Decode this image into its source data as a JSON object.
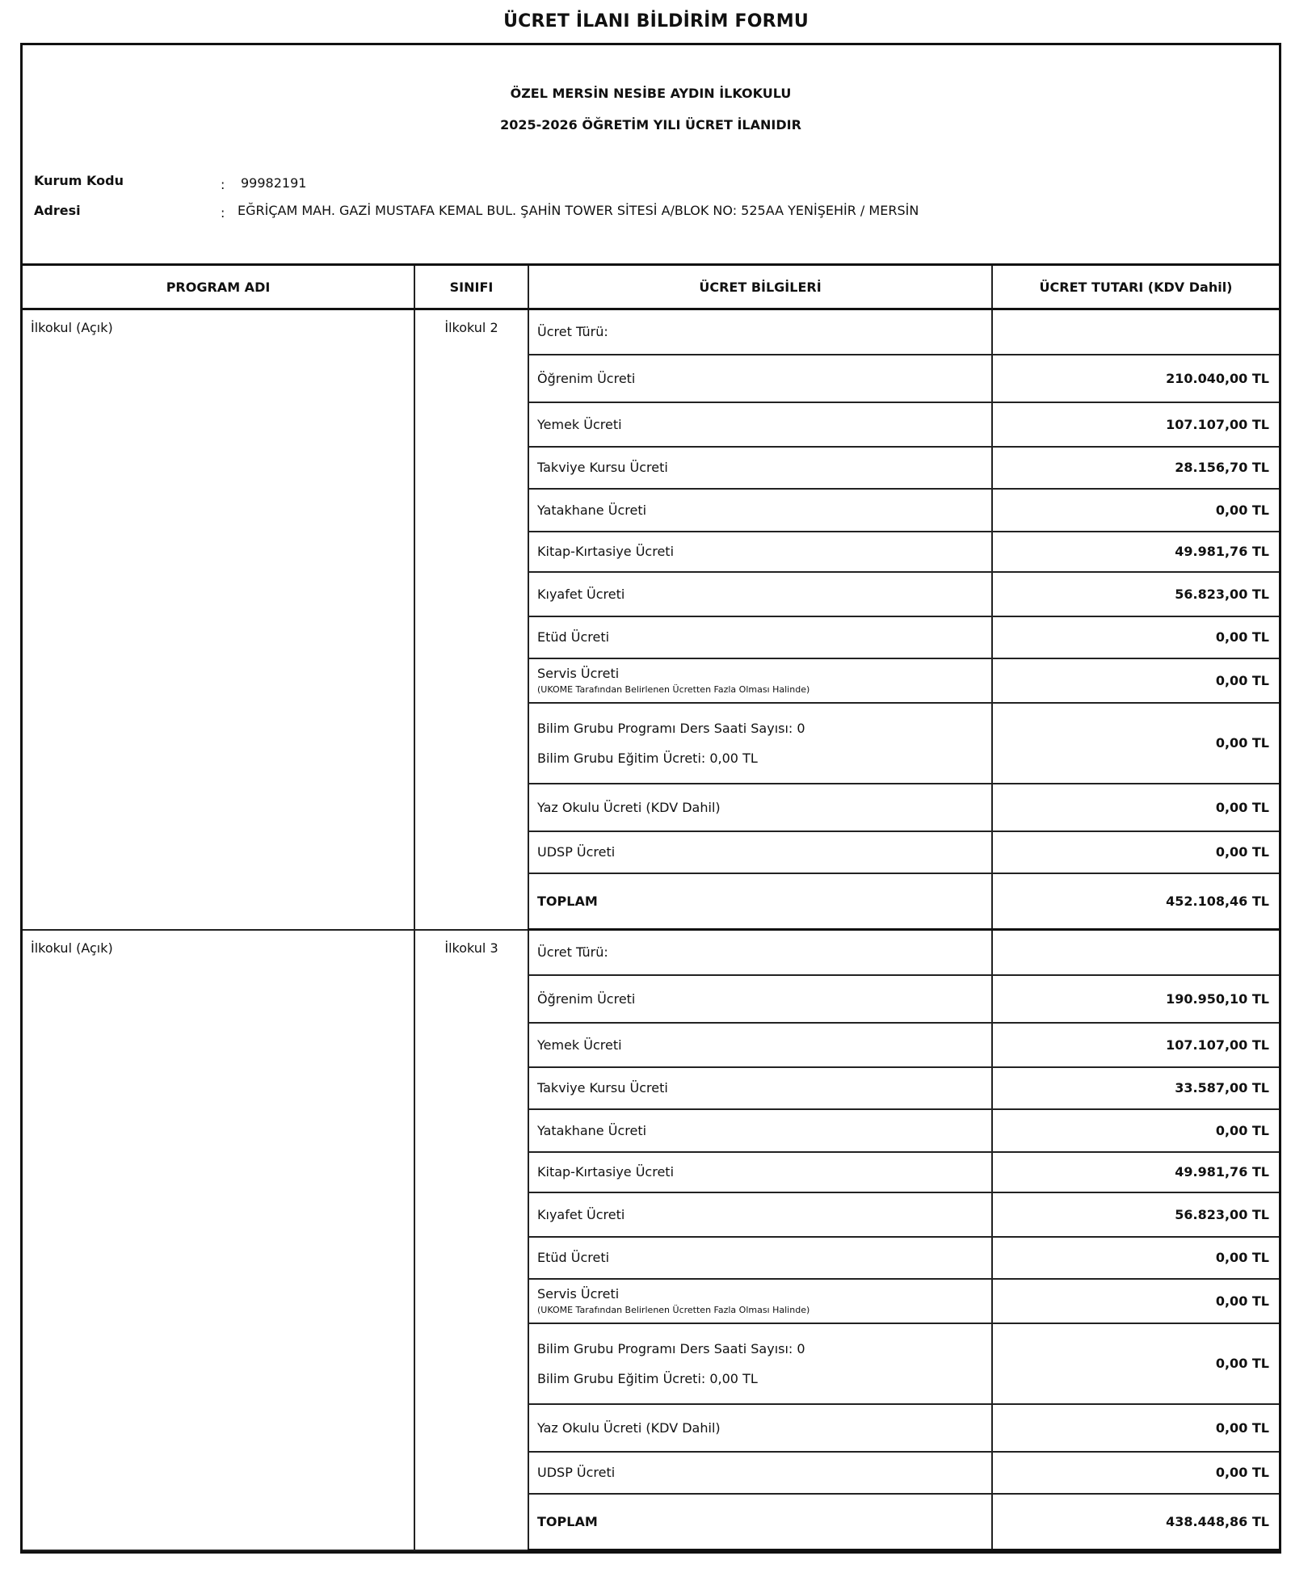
{
  "form_title": "ÜCRET İLANI BİLDİRİM FORMU",
  "school_name": "ÖZEL MERSİN NESİBE AYDIN İLKOKULU",
  "year_title": "2025-2026 ÖĞRETİM YILI ÜCRET İLANIDIR",
  "institution": {
    "code_label": "Kurum Kodu",
    "code_value": "99982191",
    "address_label": "Adresi",
    "address_value": "EĞRİÇAM MAH. GAZİ MUSTAFA KEMAL BUL. ŞAHİN TOWER SİTESİ A/BLOK  NO: 525AA YENİŞEHİR / MERSİN",
    "separator": ":"
  },
  "columns": [
    "PROGRAM ADI",
    "SINIFI",
    "ÜCRET BİLGİLERİ",
    "ÜCRET TUTARI (KDV Dahil)"
  ],
  "sections": [
    {
      "program": "İlkokul (Açık)",
      "class": "İlkokul 2",
      "rows": [
        {
          "label": "Ücret Türü:",
          "amount": ""
        },
        {
          "label": "Öğrenim Ücreti",
          "amount": "210.040,00 TL"
        },
        {
          "label": "Yemek Ücreti",
          "amount": "107.107,00 TL"
        },
        {
          "label": "Takviye Kursu Ücreti",
          "amount": "28.156,70 TL"
        },
        {
          "label": "Yatakhane Ücreti",
          "amount": "0,00 TL"
        },
        {
          "label": "Kitap-Kırtasiye Ücreti",
          "amount": "49.981,76 TL"
        },
        {
          "label": "Kıyafet Ücreti",
          "amount": "56.823,00 TL"
        },
        {
          "label": "Etüd Ücreti",
          "amount": "0,00 TL"
        },
        {
          "label": "Servis Ücreti",
          "note": "(UKOME Tarafından Belirlenen Ücretten Fazla Olması Halinde)",
          "amount": "0,00 TL"
        },
        {
          "label": "Bilim Grubu Programı Ders Saati Sayısı: 0",
          "label2": "Bilim Grubu Eğitim Ücreti: 0,00 TL",
          "amount": "0,00 TL"
        },
        {
          "label": "Yaz Okulu Ücreti (KDV Dahil)",
          "amount": "0,00 TL"
        },
        {
          "label": "UDSP Ücreti",
          "amount": "0,00 TL"
        },
        {
          "label": "TOPLAM",
          "amount": "452.108,46 TL",
          "total": true
        }
      ]
    },
    {
      "program": "İlkokul (Açık)",
      "class": "İlkokul 3",
      "rows": [
        {
          "label": "Ücret Türü:",
          "amount": ""
        },
        {
          "label": "Öğrenim Ücreti",
          "amount": "190.950,10 TL"
        },
        {
          "label": "Yemek Ücreti",
          "amount": "107.107,00 TL"
        },
        {
          "label": "Takviye Kursu Ücreti",
          "amount": "33.587,00 TL"
        },
        {
          "label": "Yatakhane Ücreti",
          "amount": "0,00 TL"
        },
        {
          "label": "Kitap-Kırtasiye Ücreti",
          "amount": "49.981,76 TL"
        },
        {
          "label": "Kıyafet Ücreti",
          "amount": "56.823,00 TL"
        },
        {
          "label": "Etüd Ücreti",
          "amount": "0,00 TL"
        },
        {
          "label": "Servis Ücreti",
          "note": "(UKOME Tarafından Belirlenen Ücretten Fazla Olması Halinde)",
          "amount": "0,00 TL"
        },
        {
          "label": "Bilim Grubu Programı Ders Saati Sayısı: 0",
          "label2": "Bilim Grubu Eğitim Ücreti: 0,00 TL",
          "amount": "0,00 TL"
        },
        {
          "label": "Yaz Okulu Ücreti (KDV Dahil)",
          "amount": "0,00 TL"
        },
        {
          "label": "UDSP Ücreti",
          "amount": "0,00 TL"
        },
        {
          "label": "TOPLAM",
          "amount": "438.448,86 TL",
          "total": true
        }
      ]
    }
  ]
}
